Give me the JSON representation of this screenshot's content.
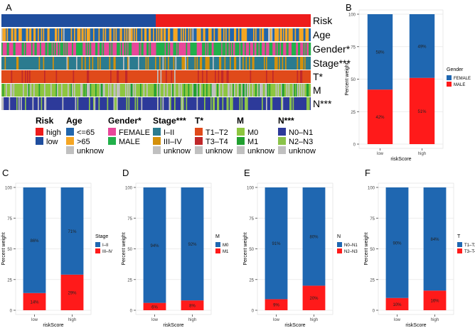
{
  "colors": {
    "high": "#ee1c1c",
    "low": "#1f4e9e",
    "age_le65": "#2166ac",
    "age_gt65": "#f5a623",
    "female": "#e8479a",
    "male": "#21b04a",
    "stage12": "#2b7b8f",
    "stage34": "#d4900a",
    "t12": "#e04a1a",
    "t34": "#c0282a",
    "m0": "#8dc63f",
    "m1": "#21a030",
    "n01": "#2d3a9a",
    "n23": "#8bc34a",
    "unknown": "#c0c0c0",
    "bar_blue": "#1f67b1",
    "bar_red": "#ff1a1a"
  },
  "panelA": {
    "label": "A",
    "track_names": [
      "Risk",
      "Age",
      "Gender*",
      "Stage***",
      "T*",
      "M",
      "N***"
    ],
    "legend": [
      {
        "title": "Risk",
        "items": [
          {
            "label": "high",
            "color": "#ee1c1c"
          },
          {
            "label": "low",
            "color": "#1f4e9e"
          }
        ]
      },
      {
        "title": "Age",
        "items": [
          {
            "label": "<=65",
            "color": "#2166ac"
          },
          {
            "label": ">65",
            "color": "#f5a623"
          },
          {
            "label": "unknow",
            "color": "#c0c0c0"
          }
        ]
      },
      {
        "title": "Gender*",
        "items": [
          {
            "label": "FEMALE",
            "color": "#e8479a"
          },
          {
            "label": "MALE",
            "color": "#21b04a"
          }
        ]
      },
      {
        "title": "Stage***",
        "items": [
          {
            "label": "I–II",
            "color": "#2b7b8f"
          },
          {
            "label": "III–IV",
            "color": "#d4900a"
          },
          {
            "label": "unknow",
            "color": "#c0c0c0"
          }
        ]
      },
      {
        "title": "T*",
        "items": [
          {
            "label": "T1–T2",
            "color": "#e04a1a"
          },
          {
            "label": "T3–T4",
            "color": "#c0282a"
          },
          {
            "label": "unknow",
            "color": "#c0c0c0"
          }
        ]
      },
      {
        "title": "M",
        "items": [
          {
            "label": "M0",
            "color": "#8dc63f"
          },
          {
            "label": "M1",
            "color": "#21a030"
          },
          {
            "label": "unknow",
            "color": "#c0c0c0"
          }
        ]
      },
      {
        "title": "N***",
        "items": [
          {
            "label": "N0–N1",
            "color": "#2d3a9a"
          },
          {
            "label": "N2–N3",
            "color": "#8bc34a"
          },
          {
            "label": "unknow",
            "color": "#c0c0c0"
          }
        ]
      }
    ]
  },
  "chart_data": [
    {
      "panel": "B",
      "type": "bar",
      "stacked": true,
      "categories": [
        "low",
        "high"
      ],
      "xlabel": "riskScore",
      "ylabel": "Percent weight",
      "ylim": [
        0,
        100
      ],
      "yticks": [
        0,
        25,
        50,
        75,
        100
      ],
      "legend_title": "Gender",
      "series": [
        {
          "name": "FEMALE",
          "values": [
            58,
            49
          ],
          "labels": [
            "58%",
            "49%"
          ],
          "color": "#1f67b1"
        },
        {
          "name": "MALE",
          "values": [
            42,
            51
          ],
          "labels": [
            "42%",
            "51%"
          ],
          "color": "#ff1a1a"
        }
      ]
    },
    {
      "panel": "C",
      "type": "bar",
      "stacked": true,
      "categories": [
        "low",
        "high"
      ],
      "xlabel": "riskScore",
      "ylabel": "Percent weight",
      "ylim": [
        0,
        100
      ],
      "yticks": [
        0,
        25,
        50,
        75,
        100
      ],
      "legend_title": "Stage",
      "series": [
        {
          "name": "I–II",
          "values": [
            86,
            71
          ],
          "labels": [
            "86%",
            "71%"
          ],
          "color": "#1f67b1"
        },
        {
          "name": "III–IV",
          "values": [
            14,
            29
          ],
          "labels": [
            "14%",
            "29%"
          ],
          "color": "#ff1a1a"
        }
      ]
    },
    {
      "panel": "D",
      "type": "bar",
      "stacked": true,
      "categories": [
        "low",
        "high"
      ],
      "xlabel": "riskScore",
      "ylabel": "Percent weight",
      "ylim": [
        0,
        100
      ],
      "yticks": [
        0,
        25,
        50,
        75,
        100
      ],
      "legend_title": "M",
      "series": [
        {
          "name": "M0",
          "values": [
            94,
            92
          ],
          "labels": [
            "94%",
            "92%"
          ],
          "color": "#1f67b1"
        },
        {
          "name": "M1",
          "values": [
            6,
            8
          ],
          "labels": [
            "6%",
            "8%"
          ],
          "color": "#ff1a1a"
        }
      ]
    },
    {
      "panel": "E",
      "type": "bar",
      "stacked": true,
      "categories": [
        "low",
        "high"
      ],
      "xlabel": "riskScore",
      "ylabel": "Percent weight",
      "ylim": [
        0,
        100
      ],
      "yticks": [
        0,
        25,
        50,
        75,
        100
      ],
      "legend_title": "N",
      "series": [
        {
          "name": "N0–N1",
          "values": [
            91,
            80
          ],
          "labels": [
            "91%",
            "80%"
          ],
          "color": "#1f67b1"
        },
        {
          "name": "N2–N3",
          "values": [
            9,
            20
          ],
          "labels": [
            "9%",
            "20%"
          ],
          "color": "#ff1a1a"
        }
      ]
    },
    {
      "panel": "F",
      "type": "bar",
      "stacked": true,
      "categories": [
        "low",
        "high"
      ],
      "xlabel": "riskScore",
      "ylabel": "Percent weight",
      "ylim": [
        0,
        100
      ],
      "yticks": [
        0,
        25,
        50,
        75,
        100
      ],
      "legend_title": "T",
      "series": [
        {
          "name": "T1–T2",
          "values": [
            90,
            84
          ],
          "labels": [
            "90%",
            "84%"
          ],
          "color": "#1f67b1"
        },
        {
          "name": "T3–T4",
          "values": [
            10,
            16
          ],
          "labels": [
            "10%",
            "16%"
          ],
          "color": "#ff1a1a"
        }
      ]
    }
  ]
}
